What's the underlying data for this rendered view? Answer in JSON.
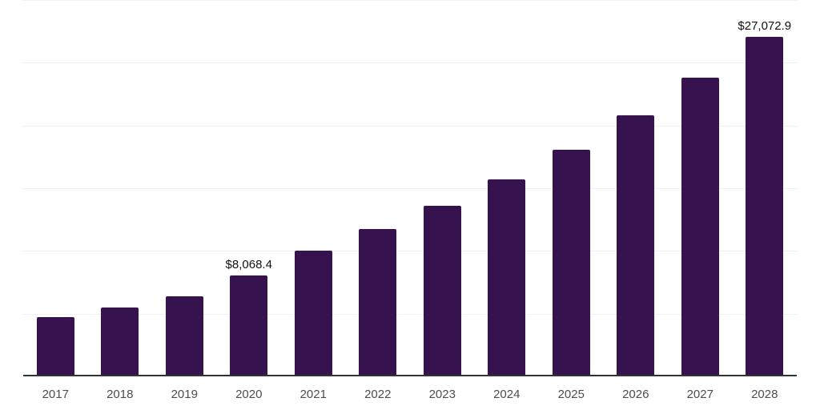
{
  "chart_data": {
    "type": "bar",
    "title": "",
    "xlabel": "",
    "ylabel": "",
    "categories": [
      "2017",
      "2018",
      "2019",
      "2020",
      "2021",
      "2022",
      "2023",
      "2024",
      "2025",
      "2026",
      "2027",
      "2028"
    ],
    "values": [
      4730,
      5480,
      6400,
      8068.4,
      10030,
      11760,
      13620,
      15700,
      18090,
      20830,
      23820,
      27072.9
    ],
    "data_labels": [
      "",
      "",
      "",
      "$8,068.4",
      "",
      "",
      "",
      "",
      "",
      "",
      "",
      "$27,072.9"
    ],
    "ylim": [
      0,
      30000
    ],
    "gridline_step": 5000,
    "grid": true,
    "legend_position": "none",
    "y_axis_tick_labels_visible": false,
    "bar_color": "#36124E",
    "gridline_color": "#f2f2f2",
    "axis_line_color": "#333333",
    "value_label_color": "#111111",
    "tick_label_color": "#4d4d4d"
  }
}
